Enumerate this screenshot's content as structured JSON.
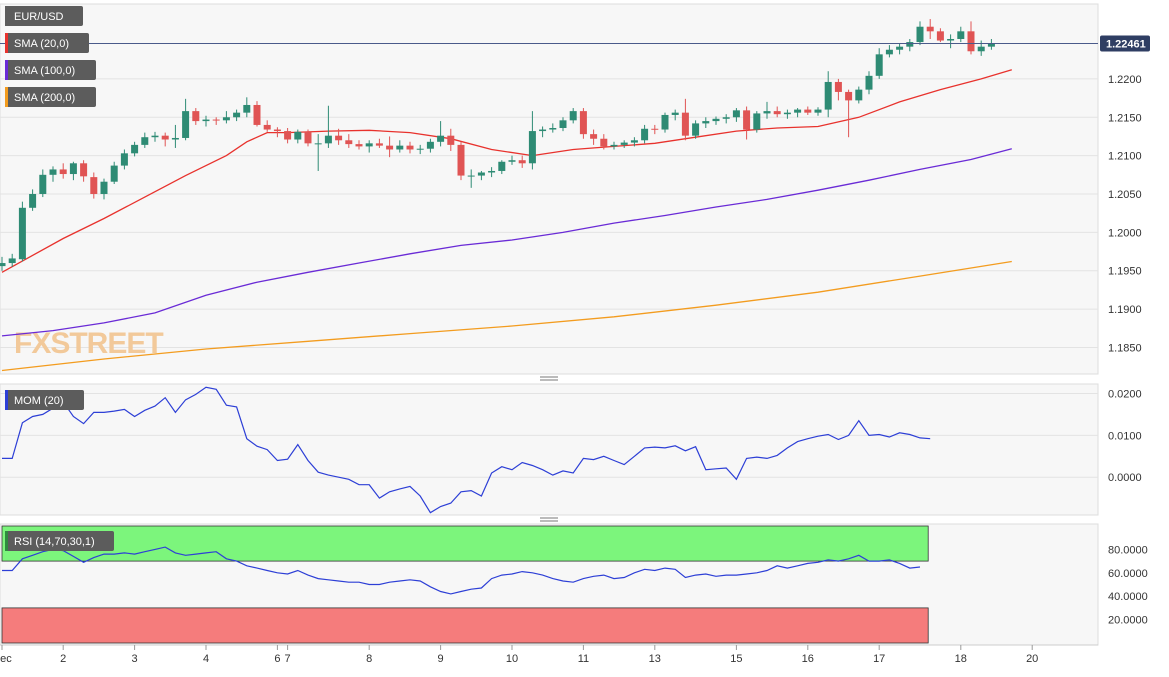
{
  "chart_data": [
    {
      "type": "candlestick",
      "symbol": "EUR/USD",
      "last_price": "1.22461",
      "ylim": [
        1.1818,
        1.2295
      ],
      "y_ticks": [
        "1.2200",
        "1.2150",
        "1.2100",
        "1.2050",
        "1.2000",
        "1.1950",
        "1.1900",
        "1.1850"
      ],
      "x_labels": [
        {
          "i": 0,
          "label": "Dec"
        },
        {
          "i": 6,
          "label": "2"
        },
        {
          "i": 13,
          "label": "3"
        },
        {
          "i": 20,
          "label": "4"
        },
        {
          "i": 27,
          "label": "6"
        },
        {
          "i": 28,
          "label": "7"
        },
        {
          "i": 36,
          "label": "8"
        },
        {
          "i": 43,
          "label": "9"
        },
        {
          "i": 50,
          "label": "10"
        },
        {
          "i": 57,
          "label": "11"
        },
        {
          "i": 64,
          "label": "13"
        },
        {
          "i": 72,
          "label": "15"
        },
        {
          "i": 79,
          "label": "16"
        },
        {
          "i": 86,
          "label": "17"
        },
        {
          "i": 94,
          "label": "18"
        },
        {
          "i": 101,
          "label": "20"
        }
      ],
      "indicators": [
        {
          "name": "SMA (20,0)",
          "color": "#e8322d"
        },
        {
          "name": "SMA (100,0)",
          "color": "#6a2bd6"
        },
        {
          "name": "SMA (200,0)",
          "color": "#f39c1f"
        }
      ],
      "candles": [
        [
          1.1956,
          1.1968,
          1.195,
          1.196
        ],
        [
          1.196,
          1.1972,
          1.1955,
          1.1966
        ],
        [
          1.1965,
          1.204,
          1.1962,
          1.2032
        ],
        [
          1.2032,
          1.2056,
          1.2028,
          1.205
        ],
        [
          1.205,
          1.2082,
          1.2046,
          1.2075
        ],
        [
          1.2075,
          1.2086,
          1.2066,
          1.2082
        ],
        [
          1.2082,
          1.209,
          1.207,
          1.2076
        ],
        [
          1.2076,
          1.2092,
          1.2068,
          1.209
        ],
        [
          1.209,
          1.2094,
          1.2066,
          1.2073
        ],
        [
          1.2072,
          1.2078,
          1.2044,
          1.205
        ],
        [
          1.205,
          1.207,
          1.2043,
          1.2066
        ],
        [
          1.2066,
          1.2092,
          1.2063,
          1.2087
        ],
        [
          1.2087,
          1.2108,
          1.2082,
          1.2103
        ],
        [
          1.2103,
          1.2118,
          1.2099,
          1.2114
        ],
        [
          1.2114,
          1.213,
          1.211,
          1.2124
        ],
        [
          1.2124,
          1.2131,
          1.2118,
          1.2126
        ],
        [
          1.2126,
          1.213,
          1.2112,
          1.2121
        ],
        [
          1.2121,
          1.214,
          1.211,
          1.2123
        ],
        [
          1.2123,
          1.2174,
          1.212,
          1.2158
        ],
        [
          1.2158,
          1.2162,
          1.214,
          1.2145
        ],
        [
          1.2145,
          1.2152,
          1.2138,
          1.2147
        ],
        [
          1.2147,
          1.215,
          1.214,
          1.2146
        ],
        [
          1.2146,
          1.2158,
          1.2142,
          1.215
        ],
        [
          1.215,
          1.216,
          1.2145,
          1.2156
        ],
        [
          1.2156,
          1.2176,
          1.215,
          1.2166
        ],
        [
          1.2166,
          1.2171,
          1.2138,
          1.214
        ],
        [
          1.214,
          1.2146,
          1.2131,
          1.2134
        ],
        [
          1.2134,
          1.2137,
          1.2124,
          1.2132
        ],
        [
          1.2132,
          1.2136,
          1.2116,
          1.2121
        ],
        [
          1.2121,
          1.2134,
          1.2116,
          1.2131
        ],
        [
          1.2131,
          1.2134,
          1.2112,
          1.2116
        ],
        [
          1.2116,
          1.2128,
          1.208,
          1.2116
        ],
        [
          1.2116,
          1.2165,
          1.211,
          1.2126
        ],
        [
          1.2126,
          1.2135,
          1.2114,
          1.212
        ],
        [
          1.212,
          1.2128,
          1.211,
          1.2115
        ],
        [
          1.2115,
          1.212,
          1.2108,
          1.2112
        ],
        [
          1.2112,
          1.212,
          1.2104,
          1.2116
        ],
        [
          1.2116,
          1.2122,
          1.211,
          1.2113
        ],
        [
          1.2113,
          1.2125,
          1.2098,
          1.2108
        ],
        [
          1.2108,
          1.212,
          1.2104,
          1.2113
        ],
        [
          1.2113,
          1.2118,
          1.2103,
          1.2108
        ],
        [
          1.2108,
          1.2114,
          1.2102,
          1.2109
        ],
        [
          1.2109,
          1.2122,
          1.2104,
          1.2118
        ],
        [
          1.2118,
          1.2145,
          1.2112,
          1.2126
        ],
        [
          1.2126,
          1.2135,
          1.2106,
          1.2114
        ],
        [
          1.2114,
          1.2118,
          1.2068,
          1.2074
        ],
        [
          1.2074,
          1.2082,
          1.2058,
          1.2074
        ],
        [
          1.2074,
          1.208,
          1.2068,
          1.2078
        ],
        [
          1.2078,
          1.2085,
          1.2072,
          1.208
        ],
        [
          1.208,
          1.2094,
          1.2076,
          1.2092
        ],
        [
          1.2092,
          1.21,
          1.2088,
          1.2094
        ],
        [
          1.2094,
          1.21,
          1.2084,
          1.209
        ],
        [
          1.209,
          1.2158,
          1.2082,
          1.2132
        ],
        [
          1.2132,
          1.2138,
          1.2124,
          1.2134
        ],
        [
          1.2134,
          1.2142,
          1.213,
          1.2136
        ],
        [
          1.2136,
          1.215,
          1.2132,
          1.2146
        ],
        [
          1.2146,
          1.2162,
          1.2142,
          1.2158
        ],
        [
          1.2158,
          1.2162,
          1.2122,
          1.2128
        ],
        [
          1.2128,
          1.2134,
          1.2114,
          1.2122
        ],
        [
          1.2122,
          1.2128,
          1.2108,
          1.2112
        ],
        [
          1.2112,
          1.2118,
          1.2108,
          1.2114
        ],
        [
          1.2114,
          1.212,
          1.211,
          1.2117
        ],
        [
          1.2117,
          1.2124,
          1.2112,
          1.212
        ],
        [
          1.212,
          1.214,
          1.2116,
          1.2135
        ],
        [
          1.2135,
          1.214,
          1.2128,
          1.2134
        ],
        [
          1.2134,
          1.2156,
          1.213,
          1.2153
        ],
        [
          1.2153,
          1.216,
          1.2146,
          1.2156
        ],
        [
          1.2156,
          1.2174,
          1.212,
          1.2126
        ],
        [
          1.2126,
          1.2146,
          1.2122,
          1.2142
        ],
        [
          1.2142,
          1.215,
          1.2136,
          1.2145
        ],
        [
          1.2145,
          1.2151,
          1.214,
          1.2148
        ],
        [
          1.2148,
          1.2154,
          1.2142,
          1.215
        ],
        [
          1.215,
          1.2162,
          1.2144,
          1.2159
        ],
        [
          1.2159,
          1.2164,
          1.2121,
          1.2134
        ],
        [
          1.2134,
          1.2158,
          1.213,
          1.2155
        ],
        [
          1.2155,
          1.217,
          1.2148,
          1.2158
        ],
        [
          1.2158,
          1.2164,
          1.215,
          1.2154
        ],
        [
          1.2154,
          1.216,
          1.2148,
          1.2156
        ],
        [
          1.2156,
          1.2162,
          1.215,
          1.216
        ],
        [
          1.216,
          1.2164,
          1.2153,
          1.2156
        ],
        [
          1.2156,
          1.2163,
          1.2152,
          1.216
        ],
        [
          1.216,
          1.221,
          1.215,
          1.2196
        ],
        [
          1.2196,
          1.22,
          1.2172,
          1.2183
        ],
        [
          1.2183,
          1.2186,
          1.2124,
          1.2172
        ],
        [
          1.2172,
          1.219,
          1.2168,
          1.2186
        ],
        [
          1.2186,
          1.221,
          1.218,
          1.2204
        ],
        [
          1.2204,
          1.224,
          1.22,
          1.2232
        ],
        [
          1.2232,
          1.2244,
          1.2228,
          1.2238
        ],
        [
          1.2238,
          1.2246,
          1.2232,
          1.2242
        ],
        [
          1.2242,
          1.2252,
          1.2236,
          1.2248
        ],
        [
          1.2248,
          1.2275,
          1.2244,
          1.2268
        ],
        [
          1.2268,
          1.2278,
          1.2252,
          1.2262
        ],
        [
          1.2262,
          1.2266,
          1.2248,
          1.225
        ],
        [
          1.225,
          1.2258,
          1.224,
          1.2252
        ],
        [
          1.2252,
          1.2268,
          1.2248,
          1.2262
        ],
        [
          1.2262,
          1.2275,
          1.2232,
          1.2236
        ],
        [
          1.2236,
          1.225,
          1.223,
          1.2242
        ],
        [
          1.2242,
          1.2252,
          1.2238,
          1.2246
        ]
      ],
      "sma20": [
        [
          0,
          1.1948
        ],
        [
          6,
          1.1992
        ],
        [
          10,
          1.2018
        ],
        [
          14,
          1.2046
        ],
        [
          18,
          1.2074
        ],
        [
          22,
          1.21
        ],
        [
          24,
          1.2118
        ],
        [
          26,
          1.213
        ],
        [
          28,
          1.213
        ],
        [
          32,
          1.2132
        ],
        [
          36,
          1.2133
        ],
        [
          40,
          1.213
        ],
        [
          44,
          1.2122
        ],
        [
          48,
          1.2108
        ],
        [
          52,
          1.21
        ],
        [
          56,
          1.2108
        ],
        [
          60,
          1.2112
        ],
        [
          64,
          1.2116
        ],
        [
          68,
          1.2124
        ],
        [
          72,
          1.2132
        ],
        [
          76,
          1.2136
        ],
        [
          80,
          1.2138
        ],
        [
          84,
          1.215
        ],
        [
          88,
          1.217
        ],
        [
          92,
          1.2186
        ],
        [
          96,
          1.22
        ],
        [
          99,
          1.2212
        ]
      ],
      "sma100": [
        [
          0,
          1.1865
        ],
        [
          5,
          1.1872
        ],
        [
          10,
          1.1882
        ],
        [
          15,
          1.1895
        ],
        [
          20,
          1.1918
        ],
        [
          25,
          1.1935
        ],
        [
          30,
          1.1948
        ],
        [
          35,
          1.196
        ],
        [
          40,
          1.1972
        ],
        [
          45,
          1.1983
        ],
        [
          50,
          1.199
        ],
        [
          55,
          1.2
        ],
        [
          60,
          1.2012
        ],
        [
          65,
          1.2022
        ],
        [
          70,
          1.2033
        ],
        [
          75,
          1.2043
        ],
        [
          80,
          1.2055
        ],
        [
          85,
          1.2068
        ],
        [
          90,
          1.2082
        ],
        [
          95,
          1.2095
        ],
        [
          99,
          1.2109
        ]
      ],
      "sma200": [
        [
          0,
          1.182
        ],
        [
          10,
          1.1835
        ],
        [
          20,
          1.1848
        ],
        [
          30,
          1.1858
        ],
        [
          40,
          1.1868
        ],
        [
          50,
          1.1878
        ],
        [
          60,
          1.189
        ],
        [
          70,
          1.1905
        ],
        [
          80,
          1.1922
        ],
        [
          90,
          1.1943
        ],
        [
          99,
          1.1962
        ]
      ]
    },
    {
      "type": "line",
      "name": "MOM (20)",
      "color": "#2d3fd6",
      "ylim": [
        -0.0088,
        0.0218
      ],
      "y_ticks": [
        "0.0200",
        "0.0100",
        "0.0000"
      ],
      "values": [
        0.0045,
        0.0045,
        0.013,
        0.0145,
        0.015,
        0.0165,
        0.018,
        0.0145,
        0.0128,
        0.0155,
        0.0155,
        0.0158,
        0.0162,
        0.0145,
        0.016,
        0.017,
        0.019,
        0.0155,
        0.0185,
        0.0198,
        0.0215,
        0.021,
        0.0172,
        0.0168,
        0.0092,
        0.0074,
        0.0066,
        0.004,
        0.0043,
        0.0078,
        0.004,
        0.0012,
        0.0005,
        0.0,
        -0.0005,
        -0.0018,
        -0.0018,
        -0.005,
        -0.0035,
        -0.0028,
        -0.0022,
        -0.0045,
        -0.0085,
        -0.007,
        -0.0062,
        -0.0035,
        -0.0032,
        -0.0045,
        0.001,
        0.0025,
        0.0018,
        0.0035,
        0.0028,
        0.0018,
        0.0005,
        0.0015,
        0.001,
        0.0045,
        0.0042,
        0.005,
        0.004,
        0.003,
        0.005,
        0.007,
        0.0072,
        0.007,
        0.0075,
        0.0063,
        0.0073,
        0.0018,
        0.002,
        0.0022,
        -0.0005,
        0.0045,
        0.0048,
        0.0045,
        0.0052,
        0.007,
        0.0085,
        0.0092,
        0.0098,
        0.0102,
        0.009,
        0.01,
        0.0135,
        0.01,
        0.0102,
        0.0096,
        0.0106,
        0.0102,
        0.0094,
        0.0092
      ]
    },
    {
      "type": "line",
      "name": "RSI (14,70,30,1)",
      "color": "#2d3fd6",
      "ylim": [
        0,
        100
      ],
      "y_ticks": [
        "80.0000",
        "60.0000",
        "40.0000",
        "20.0000"
      ],
      "overbought": 70,
      "oversold": 30,
      "values": [
        62,
        62,
        72,
        75,
        78,
        80,
        79,
        74,
        69,
        73,
        76,
        76,
        77,
        76,
        78,
        80,
        82,
        77,
        75,
        76,
        77,
        78,
        72,
        70,
        66,
        64,
        62,
        60,
        59,
        62,
        58,
        55,
        54,
        53,
        52,
        52,
        50,
        50,
        52,
        53,
        54,
        53,
        48,
        44,
        42,
        44,
        46,
        47,
        55,
        58,
        59,
        61,
        60,
        58,
        55,
        53,
        52,
        55,
        57,
        58,
        55,
        56,
        60,
        63,
        62,
        64,
        63,
        56,
        58,
        59,
        57,
        58,
        58,
        59,
        60,
        62,
        66,
        64,
        66,
        68,
        69,
        71,
        70,
        72,
        75,
        70,
        70,
        71,
        68,
        64,
        65
      ]
    }
  ],
  "watermark": "FXSTREET"
}
